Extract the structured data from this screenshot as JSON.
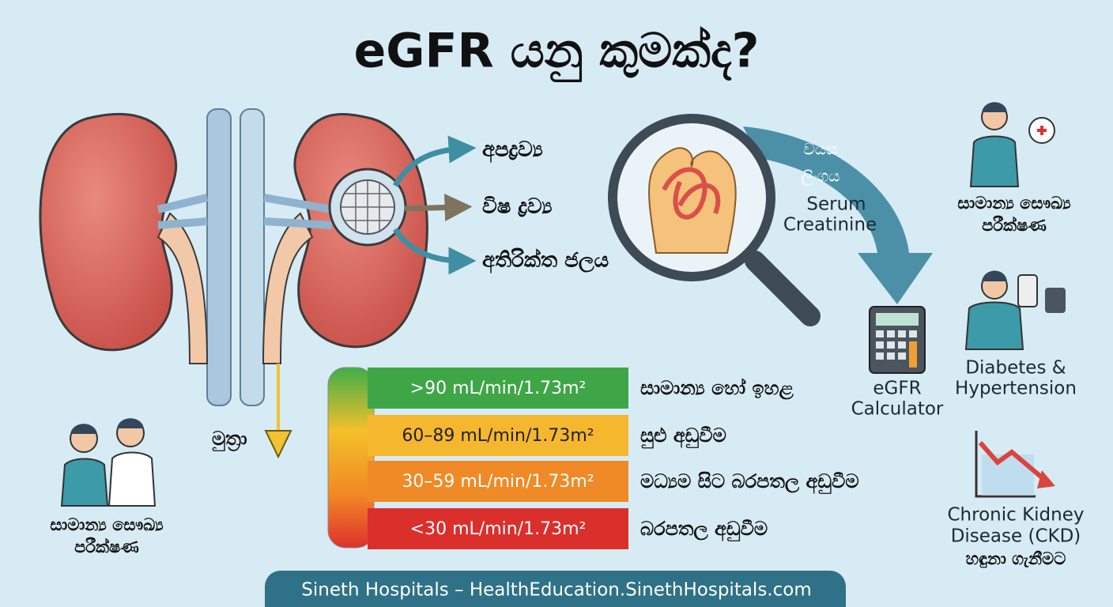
{
  "header": {
    "title": "eGFR යනු කුමක්ද?"
  },
  "filtration": {
    "outputs": [
      "අපද්‍රව්‍ය",
      "විෂ ද්‍රව්‍ය",
      "අතිරික්ත ජලය"
    ],
    "urine": "මුත්‍රා"
  },
  "inputs": {
    "lines": [
      "වයස",
      "ලිංගය",
      "Serum",
      "Creatinine"
    ]
  },
  "calculator": {
    "lines": [
      "eGFR",
      "Calculator"
    ]
  },
  "uses": [
    {
      "lines": [
        "සාමාන්‍ය සෞඛ්‍ය",
        "පරීක්ෂණ"
      ]
    },
    {
      "lines": [
        "Diabetes &",
        "Hypertension"
      ]
    },
    {
      "lines": [
        "Chronic Kidney",
        "Disease (CKD)",
        "හඳුනා ගැනීමට"
      ]
    }
  ],
  "checkup": {
    "lines": [
      "සාමාන්‍ය සෞඛ්‍ය",
      "පරීක්ෂණ"
    ]
  },
  "stages": [
    {
      "range": ">90 mL/min/1.73m²",
      "meaning": "සාමාන්‍ය හෝ ඉහළ"
    },
    {
      "range": "60–89 mL/min/1.73m²",
      "meaning": "සුළු අඩුවීම"
    },
    {
      "range": "30–59 mL/min/1.73m²",
      "meaning": "මධ්‍යම සිට බරපතල අඩුවීම"
    },
    {
      "range": "<30 mL/min/1.73m²",
      "meaning": "බරපතල අඩුවීම"
    }
  ],
  "footer": {
    "text": "Sineth Hospitals – HealthEducation.SinethHospitals.com"
  }
}
